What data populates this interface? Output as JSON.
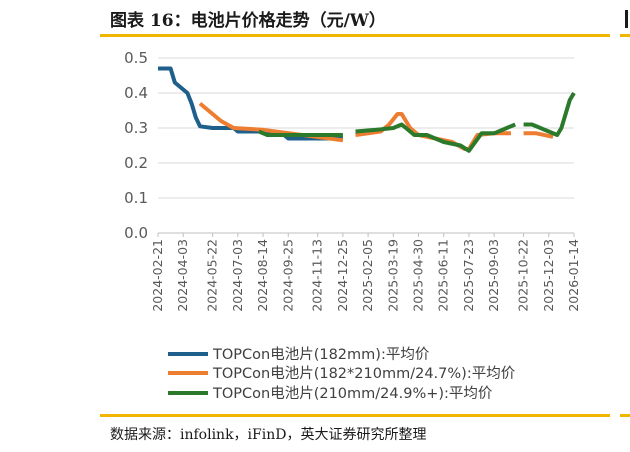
{
  "header": {
    "title": "图表 16：电池片价格走势（元/W）"
  },
  "footer": {
    "source": "数据来源：infolink，iFinD，英大证券研究所整理"
  },
  "chart_data": {
    "type": "line",
    "title": "图表 16：电池片价格走势（元/W）",
    "xlabel": "",
    "ylabel": "",
    "ylim": [
      0,
      0.5
    ],
    "yticks": [
      "0.0",
      "0.1",
      "0.2",
      "0.3",
      "0.4",
      "0.5"
    ],
    "grid": true,
    "legend_position": "bottom",
    "x_start": "2024-02-21",
    "x_end": "2026-01-14",
    "xticks": [
      "2024-02-21",
      "2024-04-03",
      "2024-05-22",
      "2024-07-03",
      "2024-08-14",
      "2024-09-25",
      "2024-11-13",
      "2024-12-25",
      "2025-02-05",
      "2025-03-19",
      "2025-04-30",
      "2025-06-11",
      "2025-07-23",
      "2025-09-03",
      "2025-10-22",
      "2025-12-03",
      "2026-01-14"
    ],
    "series": [
      {
        "name": "TOPCon电池片(182mm):平均价",
        "color": "#1f5f8b",
        "style": "solid",
        "points": [
          [
            "2024-02-21",
            0.47
          ],
          [
            "2024-03-13",
            0.47
          ],
          [
            "2024-03-20",
            0.43
          ],
          [
            "2024-04-10",
            0.4
          ],
          [
            "2024-04-17",
            0.37
          ],
          [
            "2024-04-24",
            0.33
          ],
          [
            "2024-05-01",
            0.305
          ],
          [
            "2024-05-22",
            0.3
          ],
          [
            "2024-06-26",
            0.3
          ],
          [
            "2024-07-03",
            0.29
          ],
          [
            "2024-08-14",
            0.29
          ],
          [
            "2024-08-28",
            0.28
          ],
          [
            "2024-09-18",
            0.28
          ],
          [
            "2024-09-25",
            0.27
          ],
          [
            "2024-11-13",
            0.27
          ],
          [
            "2024-12-25",
            0.27
          ]
        ]
      },
      {
        "name": "TOPCon电池片(182*210mm/24.7%):平均价",
        "color": "#ed7d31",
        "style": "segmented",
        "segments": [
          [
            [
              "2024-05-01",
              0.37
            ],
            [
              "2024-06-05",
              0.32
            ],
            [
              "2024-06-26",
              0.3
            ],
            [
              "2024-08-14",
              0.295
            ],
            [
              "2024-12-25",
              0.265
            ]
          ],
          [
            [
              "2025-01-15",
              0.28
            ],
            [
              "2025-02-26",
              0.29
            ],
            [
              "2025-03-12",
              0.31
            ],
            [
              "2025-03-26",
              0.34
            ],
            [
              "2025-04-02",
              0.34
            ],
            [
              "2025-04-16",
              0.3
            ],
            [
              "2025-04-30",
              0.28
            ],
            [
              "2025-05-28",
              0.27
            ],
            [
              "2025-06-25",
              0.26
            ],
            [
              "2025-07-16",
              0.24
            ],
            [
              "2025-07-23",
              0.24
            ],
            [
              "2025-08-06",
              0.28
            ],
            [
              "2025-09-03",
              0.285
            ],
            [
              "2025-10-01",
              0.285
            ]
          ],
          [
            [
              "2025-10-22",
              0.285
            ],
            [
              "2025-11-12",
              0.285
            ],
            [
              "2025-12-10",
              0.275
            ]
          ]
        ]
      },
      {
        "name": "TOPCon电池片(210mm/24.9%+):平均价",
        "color": "#2b7a2b",
        "style": "segmented",
        "segments": [
          [
            [
              "2024-08-07",
              0.29
            ],
            [
              "2024-08-21",
              0.28
            ],
            [
              "2024-12-25",
              0.28
            ]
          ],
          [
            [
              "2025-01-15",
              0.29
            ],
            [
              "2025-02-19",
              0.295
            ],
            [
              "2025-03-19",
              0.3
            ],
            [
              "2025-04-02",
              0.31
            ],
            [
              "2025-04-09",
              0.3
            ],
            [
              "2025-04-23",
              0.28
            ],
            [
              "2025-05-14",
              0.28
            ],
            [
              "2025-06-11",
              0.26
            ],
            [
              "2025-07-09",
              0.25
            ],
            [
              "2025-07-23",
              0.235
            ],
            [
              "2025-08-13",
              0.285
            ],
            [
              "2025-09-03",
              0.285
            ],
            [
              "2025-09-24",
              0.3
            ],
            [
              "2025-10-08",
              0.31
            ]
          ],
          [
            [
              "2025-10-22",
              0.31
            ],
            [
              "2025-11-05",
              0.31
            ],
            [
              "2025-11-19",
              0.3
            ],
            [
              "2025-12-17",
              0.28
            ],
            [
              "2025-12-24",
              0.3
            ],
            [
              "2026-01-07",
              0.38
            ],
            [
              "2026-01-14",
              0.4
            ]
          ]
        ]
      }
    ]
  }
}
